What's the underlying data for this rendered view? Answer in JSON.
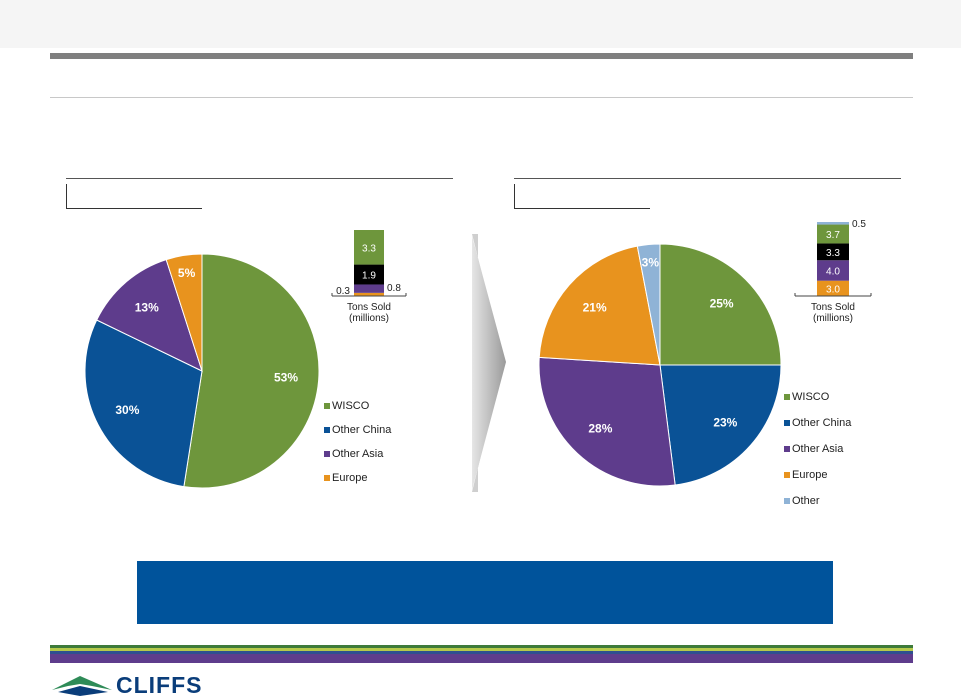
{
  "colors": {
    "wisco": "#6e963c",
    "other_china": "#0a5296",
    "other_asia": "#5e3c8c",
    "europe": "#e8931e",
    "other": "#8fb3d6",
    "stack_black": "#000000",
    "banner": "#00539b"
  },
  "footer": {
    "logo_text": "CLIFFS",
    "bar_colors": [
      "#3d7a3a",
      "#b5c94a",
      "#2f4f8f",
      "#5e3c8c"
    ]
  },
  "chart_data": [
    {
      "type": "pie",
      "categories": [
        "WISCO",
        "Other China",
        "Other Asia",
        "Europe"
      ],
      "values": [
        53,
        30,
        13,
        5
      ],
      "labels": [
        "53%",
        "30%",
        "13%",
        "5%"
      ],
      "legend": [
        "WISCO",
        "Other China",
        "Other Asia",
        "Europe"
      ],
      "legend_position": "right",
      "stacked_bar": {
        "type": "bar",
        "stacked": true,
        "segments": [
          {
            "value": 0.3,
            "label": "0.3"
          },
          {
            "value": 0.8,
            "label": "0.8"
          },
          {
            "value": 1.9,
            "label": "1.9"
          },
          {
            "value": 3.3,
            "label": "3.3"
          }
        ],
        "xlabel": "Tons Sold\n(millions)",
        "xlabel_lines": [
          "Tons Sold",
          "(millions)"
        ]
      }
    },
    {
      "type": "pie",
      "categories": [
        "WISCO",
        "Other China",
        "Other Asia",
        "Europe",
        "Other"
      ],
      "values": [
        25,
        23,
        28,
        21,
        3
      ],
      "labels": [
        "25%",
        "23%",
        "28%",
        "21%",
        "3%"
      ],
      "legend": [
        "WISCO",
        "Other China",
        "Other Asia",
        "Europe",
        "Other"
      ],
      "legend_position": "right",
      "stacked_bar": {
        "type": "bar",
        "stacked": true,
        "segments": [
          {
            "value": 3.0,
            "label": "3.0"
          },
          {
            "value": 4.0,
            "label": "4.0"
          },
          {
            "value": 3.3,
            "label": "3.3"
          },
          {
            "value": 3.7,
            "label": "3.7"
          },
          {
            "value": 0.5,
            "label": "0.5"
          }
        ],
        "xlabel_lines": [
          "Tons Sold",
          "(millions)"
        ]
      }
    }
  ]
}
